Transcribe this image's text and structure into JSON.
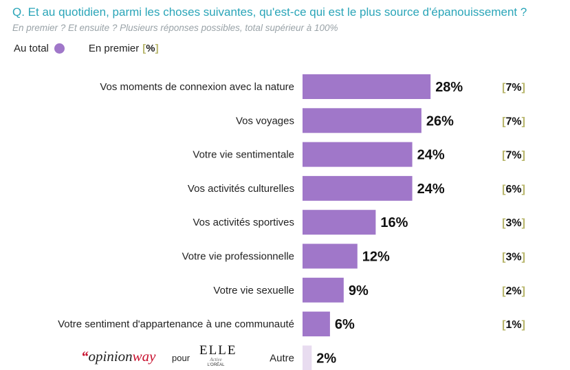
{
  "header": {
    "question": "Q. Et au quotidien, parmi les choses suivantes, qu'est-ce qui est le plus source d'épanouissement ?",
    "subtitle": "En premier ? Et ensuite ? Plusieurs réponses possibles, total supérieur à 100%"
  },
  "legend": {
    "total_label": "Au total",
    "first_label": "En premier",
    "bracket_open": "[",
    "bracket_pct": "%",
    "bracket_close": "]"
  },
  "colors": {
    "bar": "#a077c9",
    "bar_other": "#e8dcf0",
    "bracket": "#b7b56a",
    "question": "#2aa5b8",
    "subtitle": "#9aa3a8"
  },
  "chart_data": {
    "type": "bar",
    "orientation": "horizontal",
    "categories": [
      "Vos moments de connexion avec la nature",
      "Vos voyages",
      "Votre vie sentimentale",
      "Vos activités culturelles",
      "Vos activités sportives",
      "Votre vie professionnelle",
      "Votre vie sexuelle",
      "Votre sentiment d'appartenance à une communauté",
      "Autre"
    ],
    "series": [
      {
        "name": "Au total",
        "values": [
          28,
          26,
          24,
          24,
          16,
          12,
          9,
          6,
          2
        ]
      },
      {
        "name": "En premier",
        "values": [
          7,
          7,
          7,
          6,
          3,
          3,
          2,
          1,
          null
        ]
      }
    ],
    "value_labels": [
      "28%",
      "26%",
      "24%",
      "24%",
      "16%",
      "12%",
      "9%",
      "6%",
      "2%"
    ],
    "first_labels": [
      "7%",
      "7%",
      "7%",
      "6%",
      "3%",
      "3%",
      "2%",
      "1%",
      ""
    ],
    "xlim": [
      0,
      30
    ],
    "grid": false
  },
  "footer": {
    "brand_quote": "“",
    "brand_opinion": "opinion",
    "brand_way": "way",
    "pour": "pour",
    "partner_main": "ELLE",
    "partner_sub": "Active",
    "partner_sponsor": "L'ORÉAL"
  }
}
